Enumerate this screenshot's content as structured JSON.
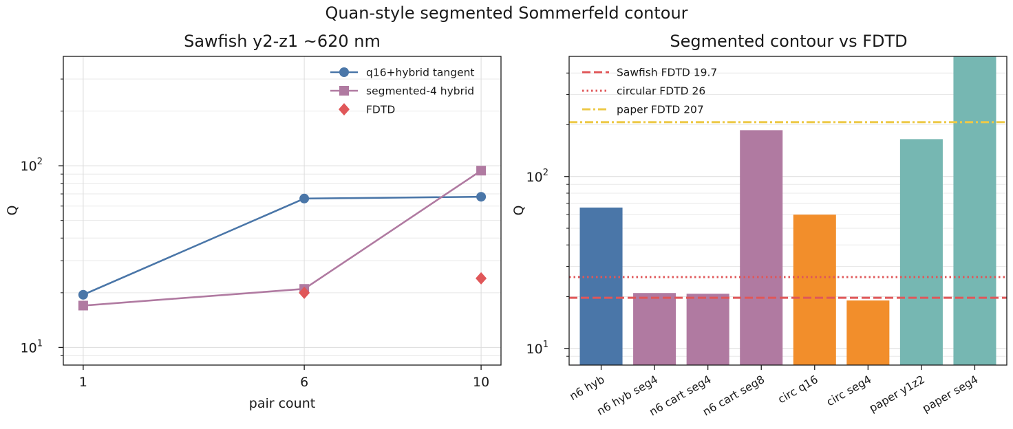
{
  "suptitle": "Quan-style segmented Sommerfeld contour",
  "chart_data": [
    {
      "type": "line",
      "title": "Sawfish y2-z1 ~620 nm",
      "xlabel": "pair count",
      "ylabel": "Q",
      "yscale": "log",
      "ylim": [
        8,
        400
      ],
      "x": [
        1,
        6,
        10
      ],
      "x_ticks": [
        "1",
        "6",
        "10"
      ],
      "y_ticks": [
        {
          "value": 10,
          "base": "10",
          "exp": "1"
        },
        {
          "value": 100,
          "base": "10",
          "exp": "2"
        }
      ],
      "grid": true,
      "legend_position": "top-right",
      "series": [
        {
          "name": "q16+hybrid tangent",
          "marker": "circle",
          "color": "#4a76a8",
          "values": [
            19.5,
            66,
            67.5
          ]
        },
        {
          "name": "segmented-4 hybrid",
          "marker": "square",
          "color": "#b07aa1",
          "values": [
            17,
            21,
            94
          ]
        },
        {
          "name": "FDTD",
          "marker": "diamond",
          "color": "#e05759",
          "line": false,
          "values": [
            null,
            20,
            24
          ]
        }
      ]
    },
    {
      "type": "bar",
      "title": "Segmented contour vs FDTD",
      "ylabel": "Q",
      "yscale": "log",
      "ylim": [
        8,
        500
      ],
      "y_ticks": [
        {
          "value": 10,
          "base": "10",
          "exp": "1"
        },
        {
          "value": 100,
          "base": "10",
          "exp": "2"
        }
      ],
      "grid": true,
      "legend_position": "top-left",
      "categories": [
        "n6 hyb",
        "n6 hyb seg4",
        "n6 cart seg4",
        "n6 cart seg8",
        "circ q16",
        "circ seg4",
        "paper y1z2",
        "paper seg4"
      ],
      "values": [
        66,
        21,
        20.8,
        186,
        60,
        19,
        165,
        500
      ],
      "bar_colors": [
        "#4a76a8",
        "#b07aa1",
        "#b07aa1",
        "#b07aa1",
        "#f28e2b",
        "#f28e2b",
        "#76b7b2",
        "#76b7b2"
      ],
      "reference_lines": [
        {
          "label": "Sawfish FDTD 19.7",
          "value": 19.7,
          "style": "dashed",
          "color": "#e05759"
        },
        {
          "label": "circular FDTD 26",
          "value": 26,
          "style": "dotted",
          "color": "#e05759"
        },
        {
          "label": "paper FDTD 207",
          "value": 207,
          "style": "dashdot",
          "color": "#edc948"
        }
      ]
    }
  ]
}
